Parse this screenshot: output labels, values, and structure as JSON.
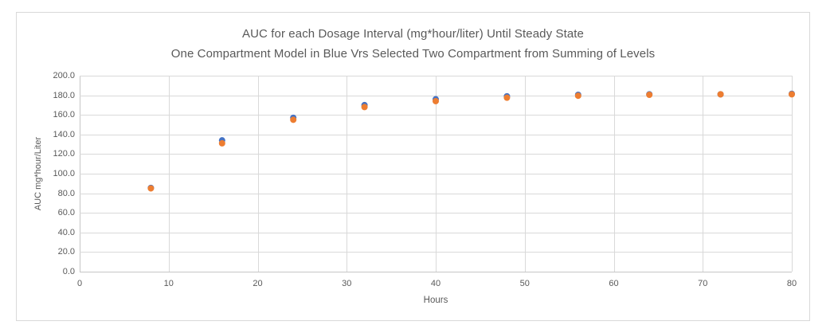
{
  "chart_data": {
    "type": "scatter",
    "title": "AUC for each Dosage Interval (mg*hour/liter) Until Steady State",
    "subtitle": "One Compartment Model in Blue Vrs Selected Two Compartment from Summing of Levels",
    "xlabel": "Hours",
    "ylabel": "AUC mg*hour/Liter",
    "xlim": [
      0,
      80
    ],
    "ylim": [
      0,
      200
    ],
    "x_ticks": [
      "0",
      "10",
      "20",
      "30",
      "40",
      "50",
      "60",
      "70",
      "80"
    ],
    "y_ticks": [
      "0.0",
      "20.0",
      "40.0",
      "60.0",
      "80.0",
      "100.0",
      "120.0",
      "140.0",
      "160.0",
      "180.0",
      "200.0"
    ],
    "grid": true,
    "legend_position": "none",
    "marker_radius": 4,
    "style": {
      "text_color": "#595959",
      "gridline_color": "#D9D9D9",
      "axis_line_color": "#C6C6C6",
      "chart_border_color": "#D9D9D9",
      "background": "#FFFFFF"
    },
    "series": [
      {
        "id": "one-compartment-blue",
        "name": "One Compartment Model (Blue)",
        "color": "#4472C4",
        "x": [
          8,
          16,
          24,
          32,
          40,
          48,
          56,
          64,
          72,
          80
        ],
        "y": [
          85.5,
          134,
          157,
          170,
          176,
          179,
          180.5,
          181,
          181,
          181.5
        ]
      },
      {
        "id": "two-compartment-orange",
        "name": "Selected Two Compartment from Summing of Levels (Orange)",
        "color": "#ED7D31",
        "x": [
          8,
          16,
          24,
          32,
          40,
          48,
          56,
          64,
          72,
          80
        ],
        "y": [
          85,
          131,
          155,
          168,
          174,
          177.5,
          179.5,
          180.5,
          181,
          181
        ]
      }
    ]
  }
}
